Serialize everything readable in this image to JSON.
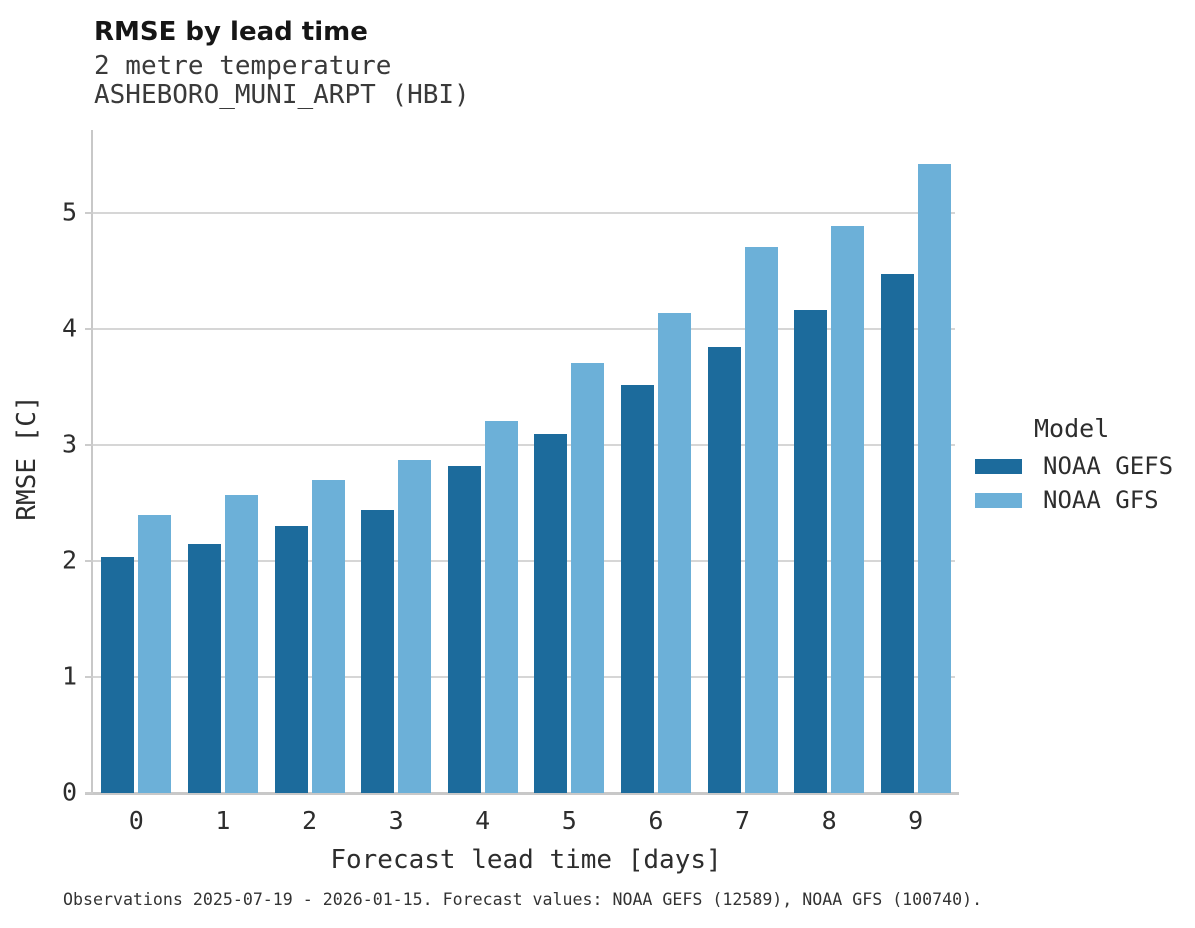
{
  "header": {
    "title": "RMSE by lead time",
    "subtitle_line1": "2 metre temperature",
    "subtitle_line2": "ASHEBORO_MUNI_ARPT (HBI)"
  },
  "chart_data": {
    "type": "bar",
    "title": "RMSE by lead time",
    "subtitle": "2 metre temperature ASHEBORO_MUNI_ARPT (HBI)",
    "categories": [
      "0",
      "1",
      "2",
      "3",
      "4",
      "5",
      "6",
      "7",
      "8",
      "9"
    ],
    "series": [
      {
        "name": "NOAA GEFS",
        "color": "#1c6b9c",
        "values": [
          2.04,
          2.15,
          2.3,
          2.44,
          2.82,
          3.1,
          3.52,
          3.85,
          4.17,
          4.48
        ]
      },
      {
        "name": "NOAA GFS",
        "color": "#6cb0d8",
        "values": [
          2.4,
          2.57,
          2.7,
          2.87,
          3.21,
          3.71,
          4.14,
          4.71,
          4.89,
          5.43
        ]
      }
    ],
    "xlabel": "Forecast lead time [days]",
    "ylabel": "RMSE [C]",
    "ylim": [
      0,
      5.72
    ],
    "yticks": [
      0,
      1,
      2,
      3,
      4,
      5
    ],
    "grid": "horizontal",
    "legend_title": "Model",
    "legend_position": "right"
  },
  "legend": {
    "title": "Model",
    "items": [
      {
        "label": "NOAA GEFS",
        "color": "#1c6b9c"
      },
      {
        "label": "NOAA GFS",
        "color": "#6cb0d8"
      }
    ]
  },
  "footer": {
    "caption": "Observations 2025-07-19 - 2026-01-15. Forecast values: NOAA GEFS (12589), NOAA GFS (100740)."
  },
  "colors": {
    "background": "#ffffff",
    "gridline": "#d6d6d6",
    "axis_line": "#c8c8c8",
    "text": "#2d2d2d",
    "title_text": "#161616"
  }
}
